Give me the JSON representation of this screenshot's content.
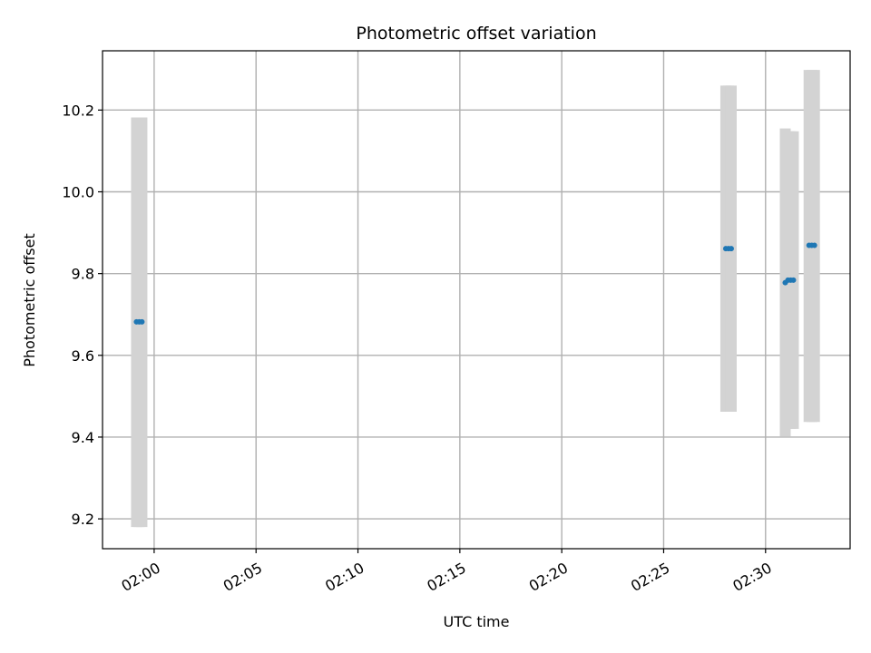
{
  "chart_data": {
    "type": "scatter",
    "title": "Photometric offset variation",
    "xlabel": "UTC time",
    "ylabel": "Photometric offset",
    "x_tick_labels": [
      "02:00",
      "02:05",
      "02:10",
      "02:15",
      "02:20",
      "02:25",
      "02:30"
    ],
    "x_ticks": [
      "02:00",
      "02:05",
      "02:10",
      "02:15",
      "02:20",
      "02:25",
      "02:30"
    ],
    "xlim": [
      "01:57:28",
      "02:34:09"
    ],
    "y_tick_labels": [
      "9.2",
      "9.4",
      "9.6",
      "9.8",
      "10.0",
      "10.2"
    ],
    "y_ticks": [
      9.2,
      9.4,
      9.6,
      9.8,
      10.0,
      10.2
    ],
    "ylim": [
      9.127,
      10.345
    ],
    "grid": true,
    "error_bar_color": "#d3d3d3",
    "point_color": "#1f77b4",
    "series": [
      {
        "points": [
          {
            "x": "01:59:08",
            "y": 9.682,
            "err_low": 9.18,
            "err_high": 10.182
          },
          {
            "x": "01:59:16",
            "y": 9.682,
            "err_low": 9.18,
            "err_high": 10.182
          },
          {
            "x": "01:59:24",
            "y": 9.682,
            "err_low": 9.18,
            "err_high": 10.182
          },
          {
            "x": "02:28:03",
            "y": 9.861,
            "err_low": 9.462,
            "err_high": 10.26
          },
          {
            "x": "02:28:11",
            "y": 9.861,
            "err_low": 9.462,
            "err_high": 10.26
          },
          {
            "x": "02:28:19",
            "y": 9.861,
            "err_low": 9.462,
            "err_high": 10.26
          },
          {
            "x": "02:30:58",
            "y": 9.778,
            "err_low": 9.402,
            "err_high": 10.155
          },
          {
            "x": "02:31:06",
            "y": 9.784,
            "err_low": 9.42,
            "err_high": 10.148
          },
          {
            "x": "02:31:14",
            "y": 9.784,
            "err_low": 9.42,
            "err_high": 10.148
          },
          {
            "x": "02:31:22",
            "y": 9.784,
            "err_low": 9.42,
            "err_high": 10.148
          },
          {
            "x": "02:32:08",
            "y": 9.869,
            "err_low": 9.437,
            "err_high": 10.298
          },
          {
            "x": "02:32:16",
            "y": 9.869,
            "err_low": 9.437,
            "err_high": 10.298
          },
          {
            "x": "02:32:24",
            "y": 9.869,
            "err_low": 9.437,
            "err_high": 10.298
          }
        ]
      }
    ]
  }
}
